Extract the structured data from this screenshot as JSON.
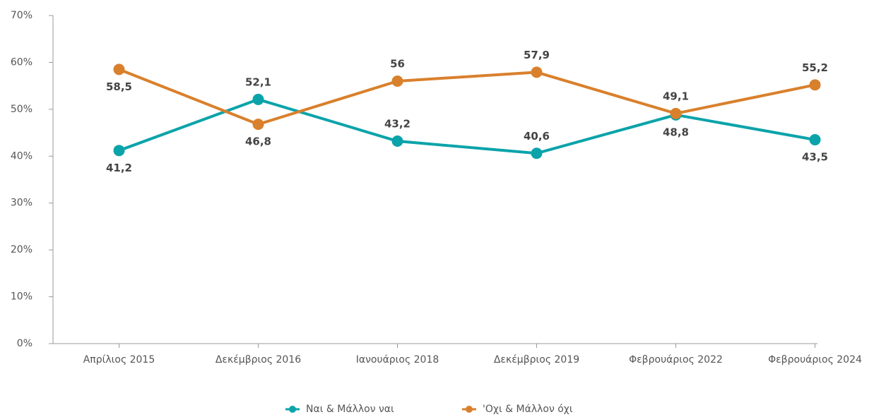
{
  "chart_data": {
    "type": "line",
    "categories": [
      "Απρίλιος 2015",
      "Δεκέμβριος 2016",
      "Ιανουάριος 2018",
      "Δεκέμβριος 2019",
      "Φεβρουάριος 2022",
      "Φεβρουάριος 2024"
    ],
    "series": [
      {
        "name": "Ναι & Μάλλον ναι",
        "color": "#0ba3aa",
        "values": [
          41.2,
          52.1,
          43.2,
          40.6,
          48.8,
          43.5
        ],
        "value_labels": [
          "41,2",
          "52,1",
          "43,2",
          "40,6",
          "48,8",
          "43,5"
        ]
      },
      {
        "name": "'Οχι & Μάλλον όχι",
        "color": "#d9802c",
        "values": [
          58.5,
          46.8,
          56,
          57.9,
          49.1,
          55.2
        ],
        "value_labels": [
          "58,5",
          "46,8",
          "56",
          "57,9",
          "49,1",
          "55,2"
        ]
      }
    ],
    "ylim": [
      0,
      70
    ],
    "yticks": [
      {
        "value": 0,
        "label": "0%"
      },
      {
        "value": 10,
        "label": "10%"
      },
      {
        "value": 20,
        "label": "20%"
      },
      {
        "value": 30,
        "label": "30%"
      },
      {
        "value": 40,
        "label": "40%"
      },
      {
        "value": 50,
        "label": "50%"
      },
      {
        "value": 60,
        "label": "60%"
      },
      {
        "value": 70,
        "label": "70%"
      }
    ],
    "legend": "bottom"
  }
}
